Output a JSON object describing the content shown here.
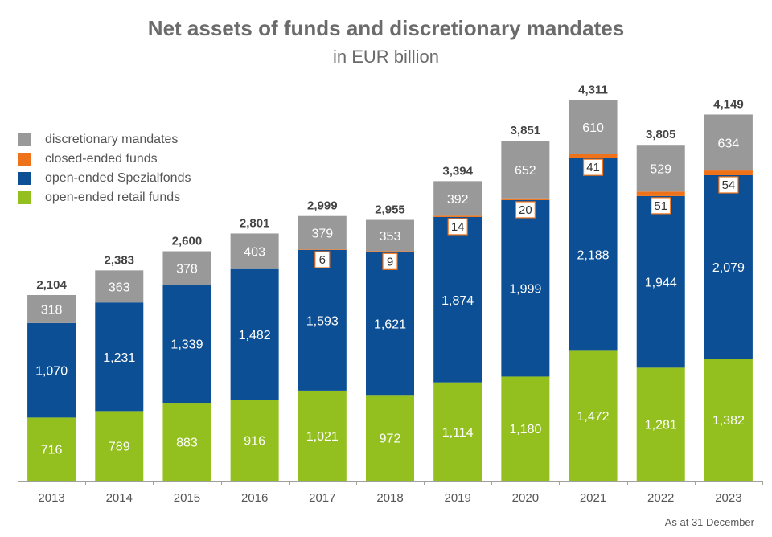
{
  "chart_data": {
    "type": "bar",
    "stacked": true,
    "title": "Net assets of funds and discretionary mandates",
    "subtitle": "in EUR billion",
    "footnote": "As at 31 December",
    "categories": [
      "2013",
      "2014",
      "2015",
      "2016",
      "2017",
      "2018",
      "2019",
      "2020",
      "2021",
      "2022",
      "2023"
    ],
    "series": [
      {
        "name": "open-ended retail funds",
        "color": "#93c01f",
        "values": [
          716,
          789,
          883,
          916,
          1021,
          972,
          1114,
          1180,
          1472,
          1281,
          1382
        ],
        "labels": [
          "716",
          "789",
          "883",
          "916",
          "1,021",
          "972",
          "1,114",
          "1,180",
          "1,472",
          "1,281",
          "1,382"
        ]
      },
      {
        "name": "open-ended Spezialfonds",
        "color": "#0d4f94",
        "values": [
          1070,
          1231,
          1339,
          1482,
          1593,
          1621,
          1874,
          1999,
          2188,
          1944,
          2079
        ],
        "labels": [
          "1,070",
          "1,231",
          "1,339",
          "1,482",
          "1,593",
          "1,621",
          "1,874",
          "1,999",
          "2,188",
          "1,944",
          "2,079"
        ]
      },
      {
        "name": "closed-ended funds",
        "color": "#ee7219",
        "values": [
          null,
          null,
          null,
          null,
          6,
          9,
          14,
          20,
          41,
          51,
          54
        ],
        "labels": [
          "",
          "",
          "",
          "",
          "6",
          "9",
          "14",
          "20",
          "41",
          "51",
          "54"
        ]
      },
      {
        "name": "discretionary mandates",
        "color": "#999999",
        "values": [
          318,
          363,
          378,
          403,
          379,
          353,
          392,
          652,
          610,
          529,
          634
        ],
        "labels": [
          "318",
          "363",
          "378",
          "403",
          "379",
          "353",
          "392",
          "652",
          "610",
          "529",
          "634"
        ]
      }
    ],
    "totals": [
      2104,
      2383,
      2600,
      2801,
      2999,
      2955,
      3394,
      3851,
      4311,
      3805,
      4149
    ],
    "total_labels": [
      "2,104",
      "2,383",
      "2,600",
      "2,801",
      "2,999",
      "2,955",
      "3,394",
      "3,851",
      "4,311",
      "3,805",
      "4,149"
    ],
    "legend": [
      {
        "name": "discretionary mandates",
        "color": "#999999"
      },
      {
        "name": "closed-ended funds",
        "color": "#ee7219"
      },
      {
        "name": "open-ended Spezialfonds",
        "color": "#0d4f94"
      },
      {
        "name": "open-ended retail funds",
        "color": "#93c01f"
      }
    ],
    "legend_position": "top-left",
    "ylim": [
      0,
      4900
    ],
    "grid": false,
    "xlabel": "",
    "ylabel": ""
  }
}
